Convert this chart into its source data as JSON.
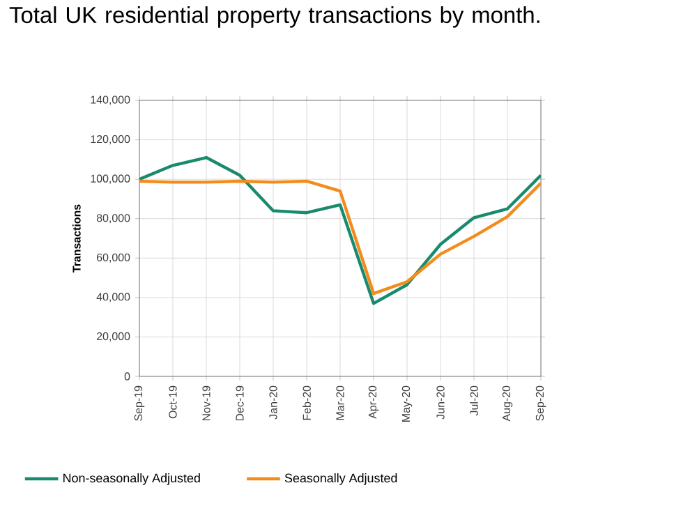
{
  "chart_data": {
    "type": "line",
    "title": "Total UK residential property transactions by month.",
    "ylabel": "Transactions",
    "categories": [
      "Sep-19",
      "Oct-19",
      "Nov-19",
      "Dec-19",
      "Jan-20",
      "Feb-20",
      "Mar-20",
      "Apr-20",
      "May-20",
      "Jun-20",
      "Jul-20",
      "Aug-20",
      "Sep-20"
    ],
    "series": [
      {
        "name": "Non-seasonally Adjusted",
        "color": "#1a8a6e",
        "values": [
          100000,
          107000,
          111000,
          102000,
          84000,
          83000,
          87000,
          37000,
          46500,
          67000,
          80500,
          85000,
          102000
        ]
      },
      {
        "name": "Seasonally Adjusted",
        "color": "#f28c1c",
        "values": [
          99000,
          98500,
          98500,
          99000,
          98500,
          99000,
          94000,
          42000,
          48000,
          62000,
          71000,
          81000,
          98000
        ]
      }
    ],
    "ylim": [
      0,
      140000
    ],
    "yticks": [
      {
        "value": 0,
        "label": "0"
      },
      {
        "value": 20000,
        "label": "20,000"
      },
      {
        "value": 40000,
        "label": "40,000"
      },
      {
        "value": 60000,
        "label": "60,000"
      },
      {
        "value": 80000,
        "label": "80,000"
      },
      {
        "value": 100000,
        "label": "100,000"
      },
      {
        "value": 120000,
        "label": "120,000"
      },
      {
        "value": 140000,
        "label": "140,000"
      }
    ],
    "grid": true,
    "legend": "bottom",
    "marker": "none",
    "line_style": "solid"
  }
}
